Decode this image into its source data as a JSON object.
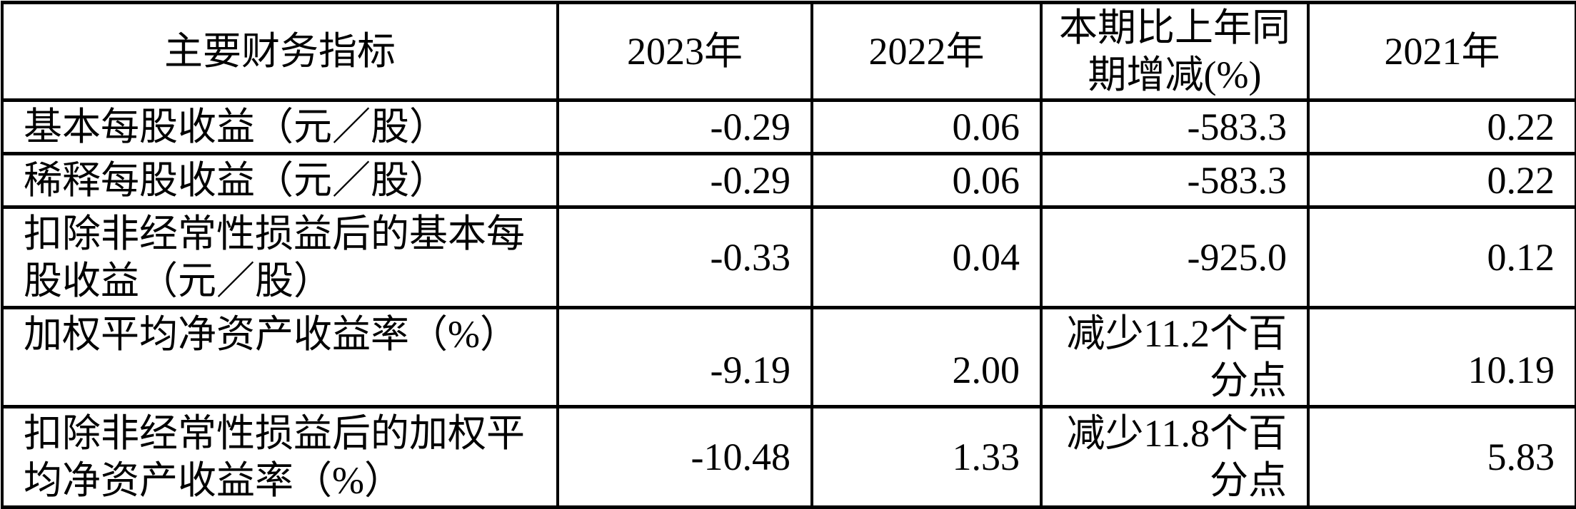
{
  "chart_data": {
    "type": "table",
    "columns": [
      "主要财务指标",
      "2023年",
      "2022年",
      "本期比上年同期增减(%)",
      "2021年"
    ],
    "rows": [
      [
        "基本每股收益（元／股）",
        "-0.29",
        "0.06",
        "-583.3",
        "0.22"
      ],
      [
        "稀释每股收益（元／股）",
        "-0.29",
        "0.06",
        "-583.3",
        "0.22"
      ],
      [
        "扣除非经常性损益后的基本每股收益（元／股）",
        "-0.33",
        "0.04",
        "-925.0",
        "0.12"
      ],
      [
        "加权平均净资产收益率（%）",
        "-9.19",
        "2.00",
        "减少11.2个百分点",
        "10.19"
      ],
      [
        "扣除非经常性损益后的加权平均净资产收益率（%）",
        "-10.48",
        "1.33",
        "减少11.8个百分点",
        "5.83"
      ]
    ],
    "grid": "on",
    "text_color": "#000000",
    "border_color": "#000000",
    "background_color": "#ffffff"
  },
  "table": {
    "header": {
      "indicator": "主要财务指标",
      "y2023": "2023年",
      "y2022": "2022年",
      "change": "本期比上年同\n期增减(%)",
      "y2021": "2021年"
    },
    "rows": [
      {
        "indicator": "基本每股收益（元／股）",
        "y2023": "-0.29",
        "y2022": "0.06",
        "change": "-583.3",
        "y2021": "0.22"
      },
      {
        "indicator": "稀释每股收益（元／股）",
        "y2023": "-0.29",
        "y2022": "0.06",
        "change": "-583.3",
        "y2021": "0.22"
      },
      {
        "indicator": "扣除非经常性损益后的基本每\n股收益（元／股）",
        "y2023": "-0.33",
        "y2022": "0.04",
        "change": "-925.0",
        "y2021": "0.12"
      },
      {
        "indicator": "加权平均净资产收益率（%）",
        "y2023": "-9.19",
        "y2022": "2.00",
        "change": "减少11.2个百\n分点",
        "y2021": "10.19"
      },
      {
        "indicator": "扣除非经常性损益后的加权平\n均净资产收益率（%）",
        "y2023": "-10.48",
        "y2022": "1.33",
        "change": "减少11.8个百\n分点",
        "y2021": "5.83"
      }
    ]
  }
}
